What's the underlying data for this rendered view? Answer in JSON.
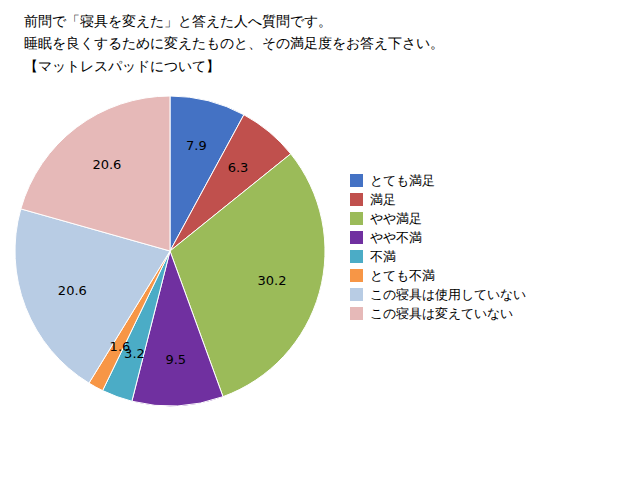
{
  "chart_data": {
    "type": "pie",
    "title": "前問で「寝具を変えた」と答えた人へ質問です。\n睡眠を良くするために変えたものと、その満足度をお答え下さい。\n【マットレスパッドについて】",
    "categories": [
      "とても満足",
      "満足",
      "やや満足",
      "やや不満",
      "不満",
      "とても不満",
      "この寝具は使用していない",
      "この寝具は変えていない"
    ],
    "values": [
      7.9,
      6.3,
      30.2,
      9.5,
      3.2,
      1.6,
      20.6,
      20.6
    ],
    "colors": [
      "#4472C4",
      "#C0504D",
      "#9BBB59",
      "#7030A0",
      "#4BACC6",
      "#F79646",
      "#B8CCE4",
      "#E6B9B8"
    ],
    "data_labels": true,
    "legend": "right"
  }
}
